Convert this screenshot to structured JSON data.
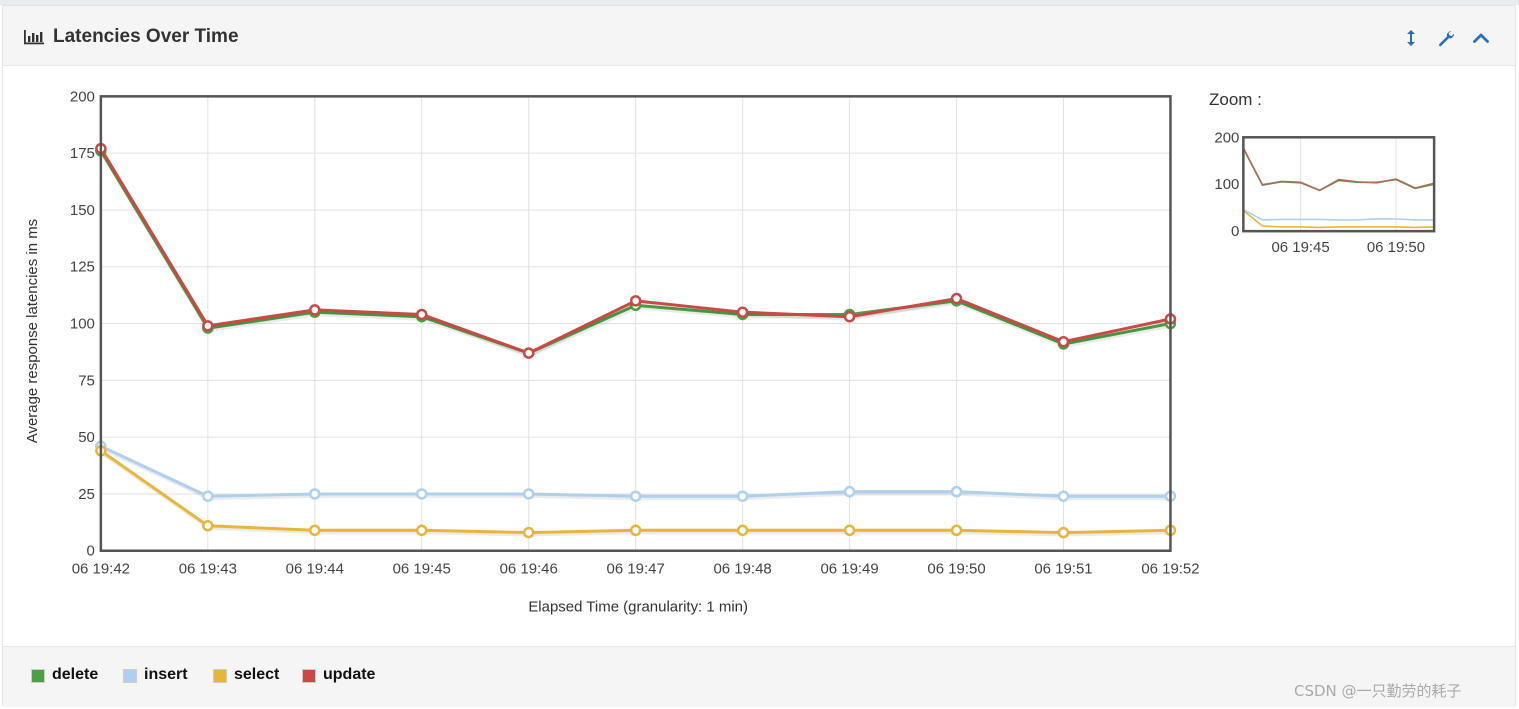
{
  "panel": {
    "title": "Latencies Over Time",
    "title_icon": "bar-chart-icon",
    "toolbar_icons": [
      "resize-vertical-icon",
      "wrench-icon",
      "chevron-up-icon"
    ],
    "accent_color": "#2a6ebb"
  },
  "zoom": {
    "label": "Zoom :",
    "y_ticks": [
      "0",
      "100",
      "200"
    ],
    "x_ticks": [
      "06 19:45",
      "06 19:50"
    ],
    "ylim": [
      0,
      200
    ]
  },
  "chart_data": {
    "type": "line",
    "title": "",
    "xlabel": "Elapsed Time (granularity: 1 min)",
    "ylabel": "Average response latencies in ms",
    "x": [
      "06 19:42",
      "06 19:43",
      "06 19:44",
      "06 19:45",
      "06 19:46",
      "06 19:47",
      "06 19:48",
      "06 19:49",
      "06 19:50",
      "06 19:51",
      "06 19:52"
    ],
    "ylim": [
      0,
      200
    ],
    "yticks": [
      0,
      25,
      50,
      75,
      100,
      125,
      150,
      175,
      200
    ],
    "grid": true,
    "series": [
      {
        "name": "delete",
        "color": "#4b9f45",
        "values": [
          176,
          98,
          105,
          103,
          87,
          108,
          104,
          104,
          110,
          91,
          100
        ]
      },
      {
        "name": "insert",
        "color": "#aed0ee",
        "values": [
          46,
          24,
          25,
          25,
          25,
          24,
          24,
          26,
          26,
          24,
          24
        ]
      },
      {
        "name": "select",
        "color": "#e8b53b",
        "values": [
          44,
          11,
          9,
          9,
          8,
          9,
          9,
          9,
          9,
          8,
          9
        ]
      },
      {
        "name": "update",
        "color": "#c84a46",
        "values": [
          177,
          99,
          106,
          104,
          87,
          110,
          105,
          103,
          111,
          92,
          102
        ]
      }
    ]
  },
  "legend": {
    "items": [
      {
        "label": "delete",
        "color": "#4b9f45"
      },
      {
        "label": "insert",
        "color": "#aed0ee"
      },
      {
        "label": "select",
        "color": "#e8b53b"
      },
      {
        "label": "update",
        "color": "#c84a46"
      }
    ]
  },
  "watermark": "CSDN @一只勤劳的耗子"
}
